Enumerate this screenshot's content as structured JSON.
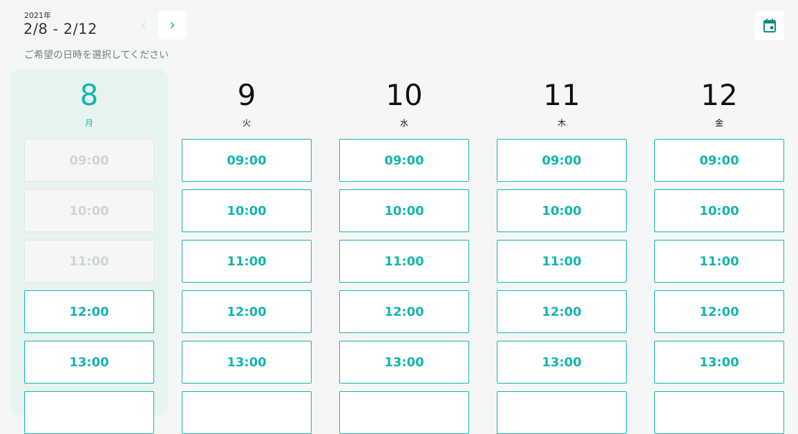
{
  "header": {
    "year": "2021年",
    "range": "2/8 - 2/12",
    "prev_icon": "chevron-left-icon",
    "next_icon": "chevron-right-icon",
    "calendar_icon": "calendar-icon",
    "hint": "ご希望の日時を選択してください"
  },
  "colors": {
    "accent": "#12b5ad",
    "today_bg": "#e6f3ef",
    "background": "#f5f7f6"
  },
  "days": [
    {
      "date": "8",
      "weekday": "月",
      "today": true,
      "slots": [
        {
          "time": "09:00",
          "available": false
        },
        {
          "time": "10:00",
          "available": false
        },
        {
          "time": "11:00",
          "available": false
        },
        {
          "time": "12:00",
          "available": true
        },
        {
          "time": "13:00",
          "available": true
        }
      ]
    },
    {
      "date": "9",
      "weekday": "火",
      "slots": [
        {
          "time": "09:00",
          "available": true
        },
        {
          "time": "10:00",
          "available": true
        },
        {
          "time": "11:00",
          "available": true
        },
        {
          "time": "12:00",
          "available": true
        },
        {
          "time": "13:00",
          "available": true
        }
      ]
    },
    {
      "date": "10",
      "weekday": "水",
      "slots": [
        {
          "time": "09:00",
          "available": true
        },
        {
          "time": "10:00",
          "available": true
        },
        {
          "time": "11:00",
          "available": true
        },
        {
          "time": "12:00",
          "available": true
        },
        {
          "time": "13:00",
          "available": true
        }
      ]
    },
    {
      "date": "11",
      "weekday": "木",
      "slots": [
        {
          "time": "09:00",
          "available": true
        },
        {
          "time": "10:00",
          "available": true
        },
        {
          "time": "11:00",
          "available": true
        },
        {
          "time": "12:00",
          "available": true
        },
        {
          "time": "13:00",
          "available": true
        }
      ]
    },
    {
      "date": "12",
      "weekday": "金",
      "slots": [
        {
          "time": "09:00",
          "available": true
        },
        {
          "time": "10:00",
          "available": true
        },
        {
          "time": "11:00",
          "available": true
        },
        {
          "time": "12:00",
          "available": true
        },
        {
          "time": "13:00",
          "available": true
        }
      ]
    }
  ]
}
